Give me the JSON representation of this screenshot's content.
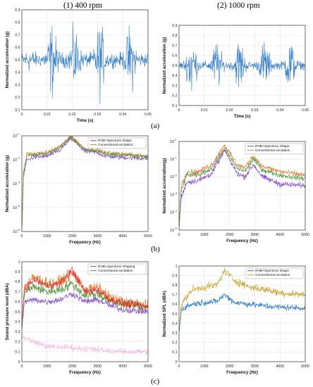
{
  "headers": {
    "left": "(1) 400 rpm",
    "right": "(2) 1000 rpm"
  },
  "row_labels": [
    "(a)",
    "(b)",
    "(c)"
  ],
  "colors": {
    "blue": "#1f6fbf",
    "orange": "#d9782a",
    "yellow": "#c2a128",
    "purple": "#7b3fbf",
    "green": "#4d8f3a",
    "red": "#d62728",
    "magenta": "#e377c2",
    "grid": "#e6e6e6"
  },
  "chart_data": [
    {
      "id": "a1",
      "type": "line",
      "xlabel": "Time (s)",
      "ylabel": "Normalized acceleration (g)",
      "xlim": [
        0,
        0.05
      ],
      "ylim": [
        0.1,
        0.9
      ],
      "xticks": [
        "0",
        "0.01",
        "0.02",
        "0.03",
        "0.04",
        "0.05"
      ],
      "yticks": [
        "0.1",
        "0.2",
        "0.3",
        "0.4",
        "0.5",
        "0.6",
        "0.7",
        "0.8",
        "0.9"
      ],
      "grid": true,
      "series": [
        {
          "color": "blue",
          "base": 0.5,
          "noise": 0.07,
          "bursts": [
            [
              0.003,
              0.05
            ],
            [
              0.012,
              0.3
            ],
            [
              0.021,
              0.25
            ],
            [
              0.031,
              0.3
            ],
            [
              0.043,
              0.28
            ]
          ]
        }
      ]
    },
    {
      "id": "a2",
      "type": "line",
      "xlabel": "Time (s)",
      "ylabel": "Normalized acceleration (g)",
      "xlim": [
        0,
        0.05
      ],
      "ylim": [
        0.1,
        0.9
      ],
      "xticks": [
        "0",
        "0.01",
        "0.02",
        "0.03",
        "0.04",
        "0.05"
      ],
      "yticks": [
        "0.1",
        "0.2",
        "0.3",
        "0.4",
        "0.5",
        "0.6",
        "0.7",
        "0.8",
        "0.9"
      ],
      "grid": true,
      "series": [
        {
          "color": "blue",
          "base": 0.5,
          "noise": 0.05,
          "bursts": [
            [
              0.005,
              0.38
            ],
            [
              0.015,
              0.28
            ],
            [
              0.024,
              0.3
            ],
            [
              0.034,
              0.28
            ],
            [
              0.044,
              0.3
            ]
          ]
        }
      ]
    },
    {
      "id": "b1",
      "type": "line",
      "log_y": true,
      "xlabel": "Frequency (Hz)",
      "ylabel": "Normalized acceleration (g)",
      "xlim": [
        0,
        5000
      ],
      "ylim": [
        1e-08,
        1
      ],
      "xticks": [
        "0",
        "1000",
        "2000",
        "3000",
        "4000",
        "5000"
      ],
      "yticks": [
        "10",
        "10",
        "10",
        "10",
        "10"
      ],
      "ytick_exponents": [
        "-8",
        "-6",
        "-4",
        "-2",
        "0"
      ],
      "grid": true,
      "legend": {
        "position": "top-right",
        "entries": [
          "RHB+Spectrum shape",
          "Conventional excitation"
        ]
      },
      "series": [
        {
          "name": "RHB+Spectrum shape",
          "color": "purple",
          "points": [
            [
              0,
              -8
            ],
            [
              60,
              -3.5
            ],
            [
              200,
              -2
            ],
            [
              500,
              -1.8
            ],
            [
              1000,
              -1.7
            ],
            [
              1500,
              -1.2
            ],
            [
              1950,
              -0.2
            ],
            [
              2500,
              -1.3
            ],
            [
              3000,
              -1.4
            ],
            [
              3300,
              -1.7
            ],
            [
              4000,
              -1.8
            ],
            [
              5000,
              -1.9
            ]
          ],
          "jitter": 0.25
        },
        {
          "name": "Conventional excitation",
          "color": "orange",
          "points": [
            [
              0,
              -8
            ],
            [
              60,
              -3
            ],
            [
              200,
              -1.5
            ],
            [
              500,
              -1.5
            ],
            [
              1000,
              -1.4
            ],
            [
              1500,
              -0.9
            ],
            [
              1950,
              0
            ],
            [
              2500,
              -1.1
            ],
            [
              3000,
              -1.2
            ],
            [
              3300,
              -1.4
            ],
            [
              4000,
              -1.5
            ],
            [
              5000,
              -1.7
            ]
          ],
          "jitter": 0.2
        },
        {
          "color": "green",
          "points": [
            [
              0,
              -8
            ],
            [
              60,
              -3.2
            ],
            [
              200,
              -1.6
            ],
            [
              500,
              -1.6
            ],
            [
              1000,
              -1.5
            ],
            [
              1500,
              -1.0
            ],
            [
              1950,
              -0.1
            ],
            [
              2500,
              -1.2
            ],
            [
              3000,
              -1.25
            ],
            [
              3300,
              -1.5
            ],
            [
              4000,
              -1.6
            ],
            [
              5000,
              -1.75
            ]
          ],
          "jitter": 0.2
        }
      ]
    },
    {
      "id": "b2",
      "type": "line",
      "log_y": true,
      "xlabel": "Frequency (Hz)",
      "ylabel": "Normalized acceleration(g)",
      "xlim": [
        0,
        5000
      ],
      "ylim": [
        1e-05,
        1
      ],
      "xticks": [
        "0",
        "1000",
        "2000",
        "3000",
        "4000",
        "5000"
      ],
      "yticks": [
        "10",
        "10",
        "10",
        "10",
        "10",
        "10"
      ],
      "ytick_exponents": [
        "-5",
        "-4",
        "-3",
        "-2",
        "-1",
        "0"
      ],
      "grid": true,
      "legend": {
        "position": "top-right",
        "entries": [
          "RHB+Spectrum Shape",
          "Conventional excitation"
        ]
      },
      "series": [
        {
          "name": "RHB+Spectrum Shape",
          "color": "purple",
          "points": [
            [
              0,
              -5
            ],
            [
              80,
              -3.2
            ],
            [
              300,
              -2.3
            ],
            [
              800,
              -2.2
            ],
            [
              1300,
              -1.8
            ],
            [
              1800,
              -0.5
            ],
            [
              2300,
              -1.8
            ],
            [
              2600,
              -2.0
            ],
            [
              2950,
              -1.3
            ],
            [
              3300,
              -2.0
            ],
            [
              4000,
              -2.4
            ],
            [
              5000,
              -2.5
            ]
          ],
          "jitter": 0.2
        },
        {
          "name": "Conventional excitation",
          "color": "orange",
          "points": [
            [
              0,
              -5
            ],
            [
              80,
              -2.5
            ],
            [
              300,
              -1.7
            ],
            [
              800,
              -1.7
            ],
            [
              1300,
              -1.3
            ],
            [
              1800,
              -0.2
            ],
            [
              2300,
              -1.3
            ],
            [
              2600,
              -1.5
            ],
            [
              2950,
              -0.8
            ],
            [
              3300,
              -1.4
            ],
            [
              4000,
              -1.7
            ],
            [
              5000,
              -1.9
            ]
          ],
          "jitter": 0.18
        },
        {
          "color": "green",
          "points": [
            [
              0,
              -5
            ],
            [
              80,
              -2.8
            ],
            [
              300,
              -1.9
            ],
            [
              800,
              -1.9
            ],
            [
              1300,
              -1.5
            ],
            [
              1800,
              -0.4
            ],
            [
              2300,
              -1.5
            ],
            [
              2600,
              -1.7
            ],
            [
              2950,
              -1.0
            ],
            [
              3300,
              -1.6
            ],
            [
              4000,
              -1.9
            ],
            [
              5000,
              -2.1
            ]
          ],
          "jitter": 0.18
        }
      ]
    },
    {
      "id": "c1",
      "type": "line",
      "xlabel": "Frequency (Hz)",
      "ylabel": "Sound pressure level (dBA)",
      "xlim": [
        0,
        5000
      ],
      "ylim": [
        0,
        1
      ],
      "xticks": [
        "0",
        "1000",
        "2000",
        "3000",
        "4000",
        "5000"
      ],
      "yticks": [
        "0",
        "0.1",
        "0.2",
        "0.3",
        "0.4",
        "0.5",
        "0.6",
        "0.7",
        "0.8",
        "0.9",
        "1"
      ],
      "grid": true,
      "legend": {
        "position": "top-right",
        "entries": [
          "RHB+Spectrum Shaping",
          "Conventional excitation"
        ]
      },
      "series": [
        {
          "color": "magenta",
          "points": [
            [
              0,
              0.25
            ],
            [
              500,
              0.2
            ],
            [
              1000,
              0.15
            ],
            [
              2000,
              0.14
            ],
            [
              3000,
              0.12
            ],
            [
              4000,
              0.1
            ],
            [
              5000,
              0.1
            ]
          ],
          "jitter": 0.04,
          "faint": true
        },
        {
          "name": "RHB+Spectrum Shaping",
          "color": "purple",
          "points": [
            [
              0,
              0.3
            ],
            [
              100,
              0.6
            ],
            [
              500,
              0.62
            ],
            [
              1000,
              0.6
            ],
            [
              1500,
              0.62
            ],
            [
              2000,
              0.68
            ],
            [
              2500,
              0.6
            ],
            [
              3000,
              0.62
            ],
            [
              3500,
              0.56
            ],
            [
              4000,
              0.52
            ],
            [
              5000,
              0.5
            ]
          ],
          "jitter": 0.04
        },
        {
          "name": "Conventional excitation",
          "color": "green",
          "points": [
            [
              0,
              0.35
            ],
            [
              100,
              0.7
            ],
            [
              500,
              0.75
            ],
            [
              1000,
              0.7
            ],
            [
              1500,
              0.72
            ],
            [
              2000,
              0.78
            ],
            [
              2500,
              0.66
            ],
            [
              3000,
              0.68
            ],
            [
              3500,
              0.6
            ],
            [
              4000,
              0.58
            ],
            [
              5000,
              0.55
            ]
          ],
          "jitter": 0.06
        },
        {
          "color": "orange",
          "points": [
            [
              0,
              0.4
            ],
            [
              100,
              0.75
            ],
            [
              500,
              0.85
            ],
            [
              1000,
              0.78
            ],
            [
              1500,
              0.8
            ],
            [
              2000,
              0.88
            ],
            [
              2500,
              0.72
            ],
            [
              3000,
              0.74
            ],
            [
              3500,
              0.64
            ],
            [
              4000,
              0.6
            ],
            [
              5000,
              0.56
            ]
          ],
          "jitter": 0.07
        },
        {
          "color": "red",
          "points": [
            [
              0,
              0.4
            ],
            [
              100,
              0.72
            ],
            [
              500,
              0.82
            ],
            [
              1000,
              0.76
            ],
            [
              1500,
              0.78
            ],
            [
              2000,
              0.92
            ],
            [
              2500,
              0.7
            ],
            [
              3000,
              0.72
            ],
            [
              3500,
              0.62
            ],
            [
              4000,
              0.58
            ],
            [
              5000,
              0.55
            ]
          ],
          "jitter": 0.05
        }
      ]
    },
    {
      "id": "c2",
      "type": "line",
      "xlabel": "Frequency (Hz)",
      "ylabel": "Normalized SPL (dBA)",
      "xlim": [
        0,
        5000
      ],
      "ylim": [
        0,
        1
      ],
      "xticks": [
        "0",
        "1000",
        "2000",
        "3000",
        "4000",
        "5000"
      ],
      "yticks": [
        "0",
        "0.1",
        "0.2",
        "0.3",
        "0.4",
        "0.5",
        "0.6",
        "0.7",
        "0.8",
        "0.9",
        "1"
      ],
      "grid": true,
      "legend": {
        "position": "top-right",
        "entries": [
          "RHB+Spectrum shape",
          "Conventional excitation"
        ]
      },
      "series": [
        {
          "name": "RHB+Spectrum shape",
          "color": "blue",
          "points": [
            [
              0,
              0.3
            ],
            [
              100,
              0.55
            ],
            [
              500,
              0.6
            ],
            [
              1000,
              0.62
            ],
            [
              1500,
              0.63
            ],
            [
              1800,
              0.7
            ],
            [
              2200,
              0.62
            ],
            [
              2800,
              0.6
            ],
            [
              3500,
              0.58
            ],
            [
              4000,
              0.57
            ],
            [
              5000,
              0.56
            ]
          ],
          "jitter": 0.04
        },
        {
          "name": "Conventional excitation",
          "color": "yellow",
          "points": [
            [
              0,
              0.35
            ],
            [
              100,
              0.6
            ],
            [
              500,
              0.75
            ],
            [
              1000,
              0.78
            ],
            [
              1500,
              0.8
            ],
            [
              1800,
              0.95
            ],
            [
              2200,
              0.85
            ],
            [
              2800,
              0.78
            ],
            [
              3500,
              0.75
            ],
            [
              4000,
              0.72
            ],
            [
              5000,
              0.7
            ]
          ],
          "jitter": 0.05
        }
      ]
    }
  ]
}
